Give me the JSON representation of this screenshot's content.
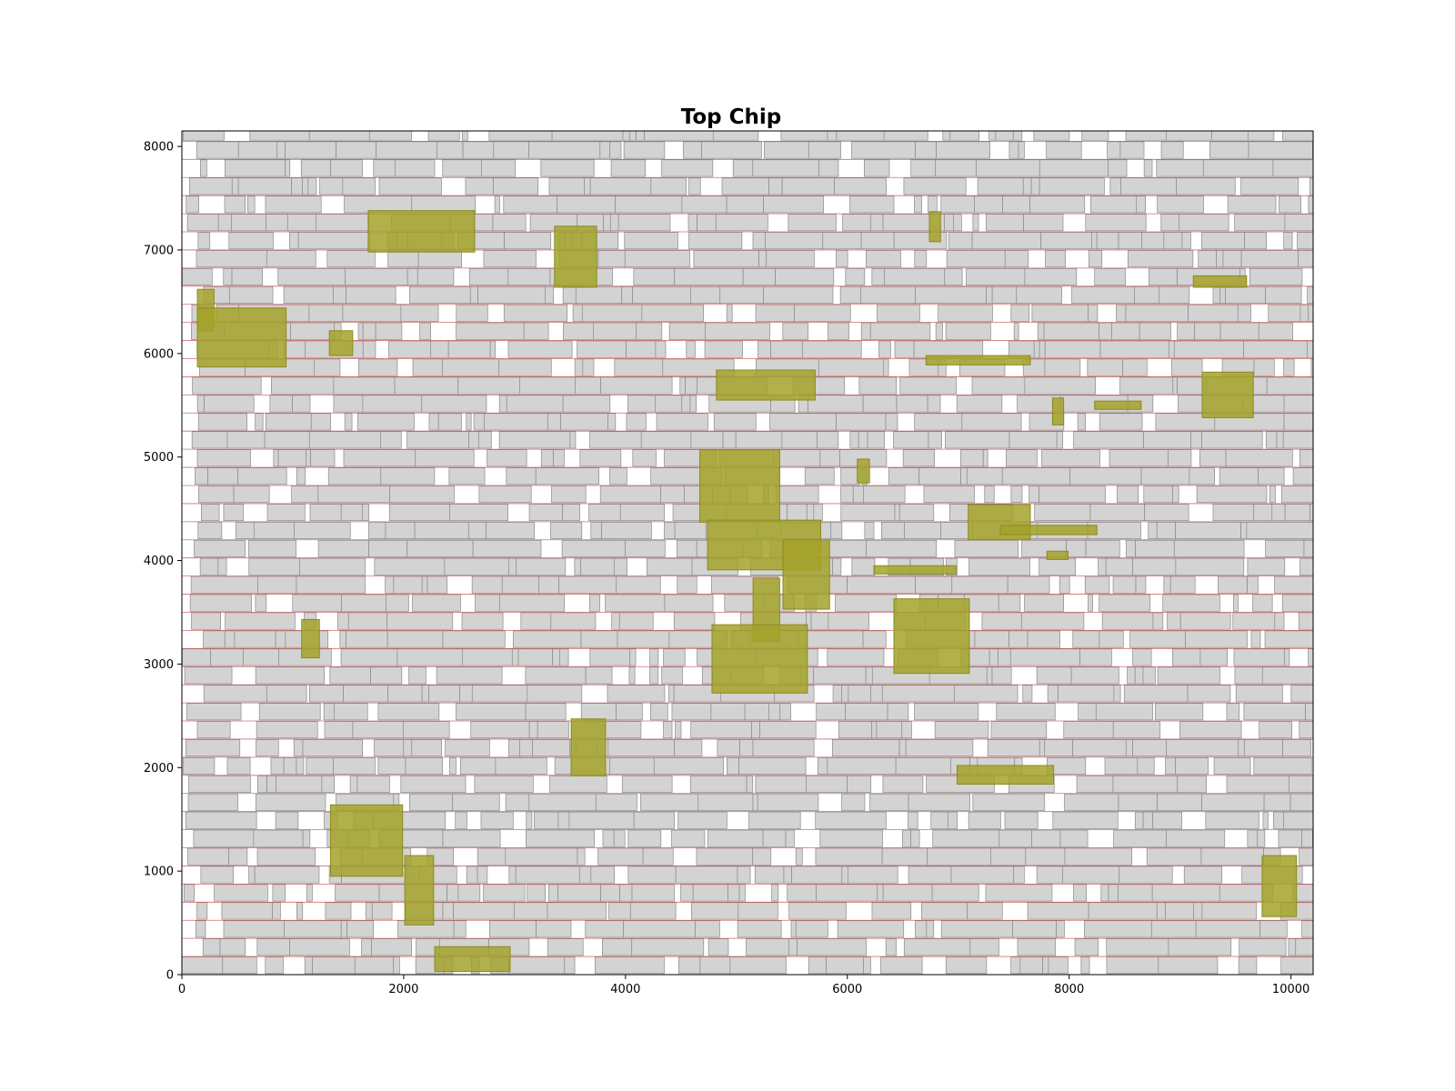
{
  "chart_data": {
    "type": "layout",
    "title": "Top Chip",
    "xlabel": "",
    "ylabel": "",
    "xlim": [
      0,
      10200
    ],
    "ylim": [
      0,
      8150
    ],
    "x_ticks": [
      0,
      2000,
      4000,
      6000,
      8000,
      10000
    ],
    "y_ticks": [
      0,
      1000,
      2000,
      3000,
      4000,
      5000,
      6000,
      7000,
      8000
    ],
    "grid": false,
    "row_height": 175,
    "row_count": 47,
    "colors": {
      "cell_fill": "#d3d3d3",
      "cell_edge": "#8a8a8a",
      "macro_fill": "#a3a22a",
      "macro_edge": "#8b8a1e",
      "row_line": "#c04040"
    },
    "macros": [
      {
        "x0": 1680,
        "y0": 6980,
        "x1": 2640,
        "y1": 7380
      },
      {
        "x0": 3360,
        "y0": 6640,
        "x1": 3740,
        "y1": 7230
      },
      {
        "x0": 6740,
        "y0": 7080,
        "x1": 6840,
        "y1": 7370
      },
      {
        "x0": 140,
        "y0": 6220,
        "x1": 290,
        "y1": 6620
      },
      {
        "x0": 140,
        "y0": 5870,
        "x1": 940,
        "y1": 6440
      },
      {
        "x0": 1330,
        "y0": 5980,
        "x1": 1540,
        "y1": 6220
      },
      {
        "x0": 9120,
        "y0": 6640,
        "x1": 9600,
        "y1": 6750
      },
      {
        "x0": 6710,
        "y0": 5890,
        "x1": 7650,
        "y1": 5980
      },
      {
        "x0": 4820,
        "y0": 5550,
        "x1": 5710,
        "y1": 5840
      },
      {
        "x0": 9200,
        "y0": 5380,
        "x1": 9660,
        "y1": 5820
      },
      {
        "x0": 7850,
        "y0": 5310,
        "x1": 7950,
        "y1": 5570
      },
      {
        "x0": 8230,
        "y0": 5460,
        "x1": 8650,
        "y1": 5540
      },
      {
        "x0": 4670,
        "y0": 4370,
        "x1": 5390,
        "y1": 5070
      },
      {
        "x0": 6090,
        "y0": 4750,
        "x1": 6200,
        "y1": 4980
      },
      {
        "x0": 4740,
        "y0": 3910,
        "x1": 5760,
        "y1": 4390
      },
      {
        "x0": 7090,
        "y0": 4200,
        "x1": 7650,
        "y1": 4540
      },
      {
        "x0": 7380,
        "y0": 4250,
        "x1": 8250,
        "y1": 4340
      },
      {
        "x0": 7800,
        "y0": 4010,
        "x1": 7990,
        "y1": 4090
      },
      {
        "x0": 5420,
        "y0": 3530,
        "x1": 5840,
        "y1": 4200
      },
      {
        "x0": 6240,
        "y0": 3870,
        "x1": 6980,
        "y1": 3950
      },
      {
        "x0": 5150,
        "y0": 3220,
        "x1": 5390,
        "y1": 3830
      },
      {
        "x0": 6420,
        "y0": 2910,
        "x1": 7100,
        "y1": 3630
      },
      {
        "x0": 4780,
        "y0": 2720,
        "x1": 5640,
        "y1": 3380
      },
      {
        "x0": 1080,
        "y0": 3060,
        "x1": 1240,
        "y1": 3430
      },
      {
        "x0": 3510,
        "y0": 1920,
        "x1": 3820,
        "y1": 2470
      },
      {
        "x0": 6990,
        "y0": 1840,
        "x1": 7860,
        "y1": 2020
      },
      {
        "x0": 1340,
        "y0": 950,
        "x1": 1990,
        "y1": 1640
      },
      {
        "x0": 2010,
        "y0": 480,
        "x1": 2270,
        "y1": 1150
      },
      {
        "x0": 9740,
        "y0": 560,
        "x1": 10050,
        "y1": 1150
      },
      {
        "x0": 2280,
        "y0": 30,
        "x1": 2960,
        "y1": 270
      }
    ]
  }
}
